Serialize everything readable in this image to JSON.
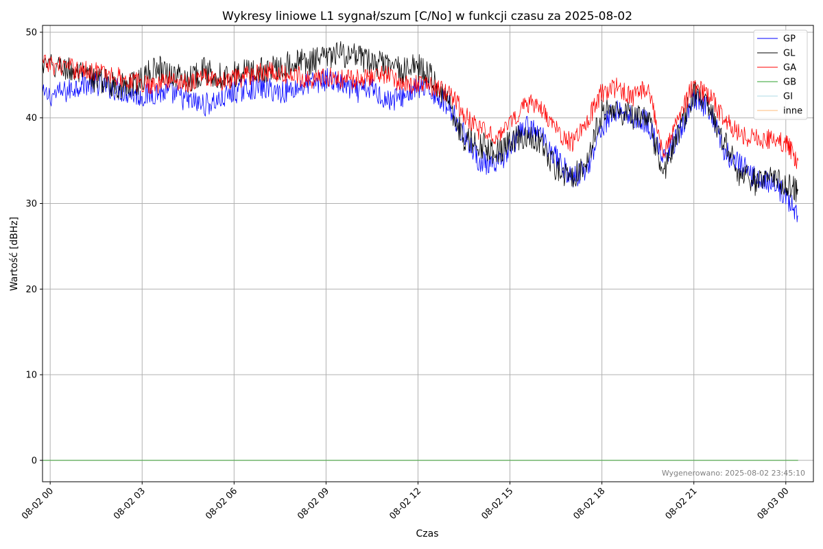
{
  "chart_data": {
    "type": "line",
    "title": "Wykresy liniowe L1 sygnał/szum [C/No] w funkcji czasu za 2025-08-02",
    "xlabel": "Czas",
    "ylabel": "Wartość [dBHz]",
    "xlim": [
      -0.25,
      24.9
    ],
    "ylim": [
      -2.5,
      50.8
    ],
    "grid": true,
    "legend_position": "top-right",
    "x_unit": "hours since 2025-08-02 00:00",
    "x_ticks": [
      0,
      3,
      6,
      9,
      12,
      15,
      18,
      21,
      24
    ],
    "x_tick_labels": [
      "08-02 00",
      "08-02 03",
      "08-02 06",
      "08-02 09",
      "08-02 12",
      "08-02 15",
      "08-02 18",
      "08-02 21",
      "08-03 00"
    ],
    "y_ticks": [
      0,
      10,
      20,
      30,
      40,
      50
    ],
    "y_tick_labels": [
      "0",
      "10",
      "20",
      "30",
      "40",
      "50"
    ],
    "series": [
      {
        "name": "GP",
        "color": "#0000ff",
        "x": [
          -0.25,
          0.5,
          1,
          1.5,
          2,
          2.5,
          3,
          3.5,
          4,
          4.5,
          5,
          5.5,
          6,
          6.5,
          7,
          7.5,
          8,
          8.5,
          9,
          9.5,
          10,
          10.5,
          11,
          11.5,
          12,
          12.5,
          13,
          13.5,
          14,
          14.5,
          15,
          15.5,
          16,
          16.5,
          17,
          17.5,
          18,
          18.5,
          19,
          19.5,
          20,
          20.5,
          21,
          21.5,
          22,
          22.5,
          23,
          23.5,
          24,
          24.4
        ],
        "values": [
          42.5,
          43.0,
          44.0,
          44.0,
          43.5,
          43.0,
          42.5,
          43.0,
          42.8,
          42.0,
          41.5,
          42.0,
          43.0,
          43.5,
          43.5,
          43.0,
          43.5,
          44.0,
          44.5,
          44.0,
          43.0,
          43.5,
          42.0,
          42.5,
          43.5,
          43.0,
          41.5,
          38.0,
          35.0,
          34.0,
          36.5,
          39.0,
          38.0,
          35.5,
          33.0,
          34.0,
          39.0,
          41.0,
          40.0,
          39.5,
          35.0,
          38.0,
          42.0,
          41.0,
          36.0,
          34.5,
          33.0,
          32.5,
          31.0,
          28.5
        ]
      },
      {
        "name": "GL",
        "color": "#000000",
        "x": [
          -0.25,
          0.5,
          1,
          1.5,
          2,
          2.5,
          3,
          3.5,
          4,
          4.5,
          5,
          5.5,
          6,
          6.5,
          7,
          7.5,
          8,
          8.5,
          9,
          9.5,
          10,
          10.5,
          11,
          11.5,
          12,
          12.5,
          13,
          13.5,
          14,
          14.5,
          15,
          15.5,
          16,
          16.5,
          17,
          17.5,
          18,
          18.5,
          19,
          19.5,
          20,
          20.5,
          21,
          21.5,
          22,
          22.5,
          23,
          23.5,
          24,
          24.4
        ],
        "values": [
          46.0,
          45.8,
          45.0,
          44.5,
          44.0,
          43.5,
          44.5,
          46.0,
          45.0,
          44.5,
          45.5,
          45.0,
          45.0,
          45.5,
          45.5,
          46.0,
          46.5,
          46.5,
          47.0,
          47.5,
          47.0,
          46.5,
          46.0,
          45.5,
          46.0,
          44.5,
          42.0,
          37.5,
          37.0,
          36.0,
          37.0,
          38.0,
          37.0,
          34.0,
          33.0,
          35.0,
          40.5,
          41.0,
          40.0,
          40.0,
          33.5,
          38.0,
          43.0,
          41.0,
          37.0,
          33.5,
          32.5,
          33.0,
          32.5,
          31.5
        ]
      },
      {
        "name": "GA",
        "color": "#ff0000",
        "x": [
          -0.25,
          0.5,
          1,
          1.5,
          2,
          2.5,
          3,
          3.5,
          4,
          4.5,
          5,
          5.5,
          6,
          6.5,
          7,
          7.5,
          8,
          8.5,
          9,
          9.5,
          10,
          10.5,
          11,
          11.5,
          12,
          12.5,
          13,
          13.5,
          14,
          14.5,
          15,
          15.5,
          16,
          16.5,
          17,
          17.5,
          18,
          18.5,
          19,
          19.5,
          20,
          20.5,
          21,
          21.5,
          22,
          22.5,
          23,
          23.5,
          24,
          24.4
        ],
        "values": [
          46.3,
          46.0,
          45.5,
          45.5,
          45.0,
          44.5,
          44.0,
          44.0,
          44.5,
          44.0,
          45.0,
          44.0,
          44.5,
          45.0,
          45.5,
          45.0,
          45.0,
          44.5,
          44.8,
          44.5,
          44.5,
          45.0,
          45.0,
          44.0,
          44.0,
          43.5,
          43.0,
          40.5,
          38.5,
          38.0,
          39.0,
          42.0,
          41.0,
          38.5,
          37.0,
          39.5,
          43.0,
          43.5,
          42.5,
          43.5,
          36.0,
          40.0,
          44.0,
          42.5,
          40.0,
          38.0,
          37.5,
          37.5,
          37.0,
          35.0
        ]
      },
      {
        "name": "GB",
        "color": "#2ca02c",
        "x": [
          -0.25,
          24.4
        ],
        "values": [
          0,
          0
        ]
      },
      {
        "name": "GI",
        "color": "#add8e6",
        "x": [
          -0.25,
          24.4
        ],
        "values": [
          0,
          0
        ]
      },
      {
        "name": "inne",
        "color": "#ffbb78",
        "x": [
          -0.25,
          24.4
        ],
        "values": [
          0,
          0
        ]
      }
    ],
    "annotation": "Wygenerowano: 2025-08-02 23:45:10"
  }
}
